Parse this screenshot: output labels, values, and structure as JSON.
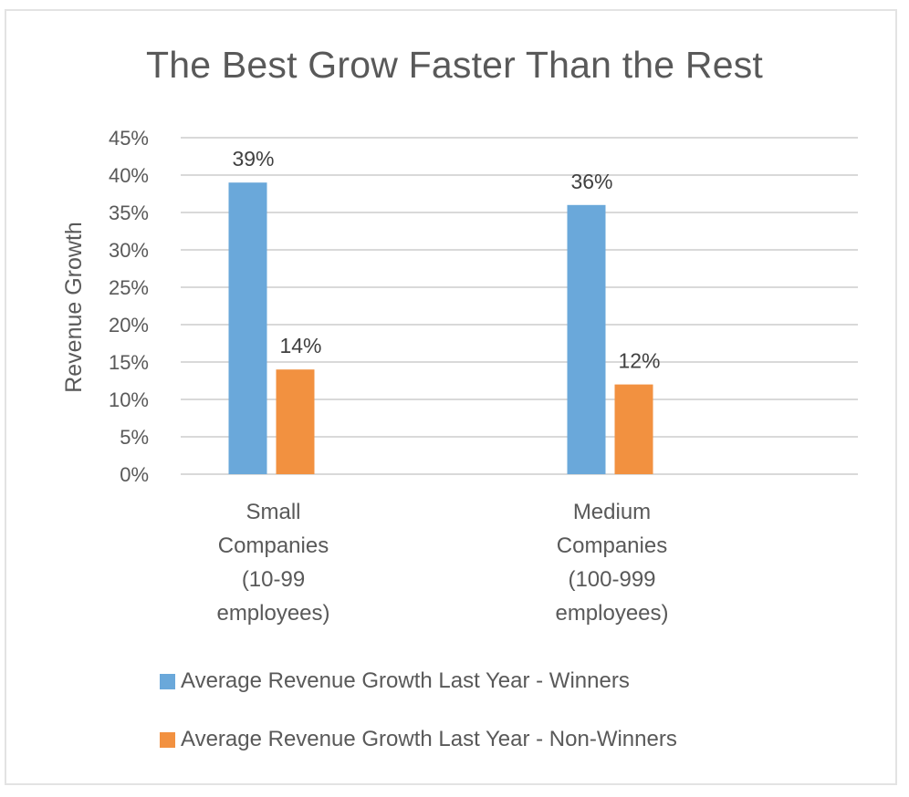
{
  "chart_data": {
    "type": "bar",
    "title": "The Best Grow Faster Than the Rest",
    "xlabel": "",
    "ylabel": "Revenue Growth",
    "ylim": [
      0,
      45
    ],
    "yticks": [
      0,
      5,
      10,
      15,
      20,
      25,
      30,
      35,
      40,
      45
    ],
    "ytick_labels": [
      "0%",
      "5%",
      "10%",
      "15%",
      "20%",
      "25%",
      "30%",
      "35%",
      "40%",
      "45%"
    ],
    "grid": true,
    "legend_position": "bottom",
    "categories": [
      [
        "Small",
        "Companies",
        "(10-99",
        "employees)"
      ],
      [
        "Medium",
        "Companies",
        "(100-999",
        "employees)"
      ]
    ],
    "category_names": [
      "Small Companies (10-99 employees)",
      "Medium Companies (100-999 employees)"
    ],
    "series": [
      {
        "name": "Average Revenue Growth Last Year - Winners",
        "color": "#6aa8da",
        "values": [
          39,
          36
        ],
        "data_labels": [
          "39%",
          "36%"
        ]
      },
      {
        "name": "Average Revenue Growth Last Year - Non-Winners",
        "color": "#f29140",
        "values": [
          14,
          12
        ],
        "data_labels": [
          "14%",
          "12%"
        ]
      }
    ],
    "colors": {
      "gridline": "#d9d9d9",
      "text": "#595959",
      "border": "#e3e3e3"
    }
  }
}
